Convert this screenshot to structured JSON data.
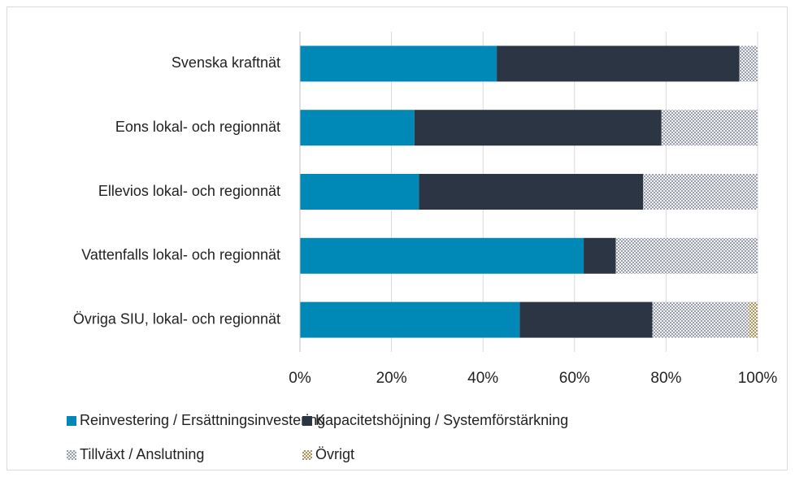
{
  "chart_data": {
    "type": "stacked-bar-horizontal",
    "categories": [
      "Svenska kraftnät",
      "Eons lokal- och regionnät",
      "Ellevios lokal- och regionnät",
      "Vattenfalls lokal- och regionnät",
      "Övriga SIU, lokal- och regionnät"
    ],
    "series": [
      {
        "name": "Reinvestering / Ersättningsinvestering",
        "color": "#0089b6",
        "fill_style": "solid",
        "values": [
          43,
          25,
          26,
          62,
          48
        ]
      },
      {
        "name": "Kapacitetshöjning / Systemförstärkning",
        "color": "#2b3544",
        "fill_style": "solid",
        "values": [
          53,
          54,
          49,
          7,
          29
        ]
      },
      {
        "name": "Tillväxt / Anslutning",
        "color": "#9aa0ab",
        "fill_style": "hatched",
        "values": [
          4,
          21,
          25,
          31,
          21
        ]
      },
      {
        "name": "Övrigt",
        "color": "#a8965c",
        "fill_style": "hatched",
        "values": [
          0,
          0,
          0,
          0,
          2
        ]
      }
    ],
    "xlim": [
      0,
      100
    ],
    "xticks": [
      {
        "value": 0,
        "label": "0%"
      },
      {
        "value": 20,
        "label": "20%"
      },
      {
        "value": 40,
        "label": "40%"
      },
      {
        "value": 60,
        "label": "60%"
      },
      {
        "value": 80,
        "label": "80%"
      },
      {
        "value": 100,
        "label": "100%"
      }
    ],
    "grid": true
  }
}
